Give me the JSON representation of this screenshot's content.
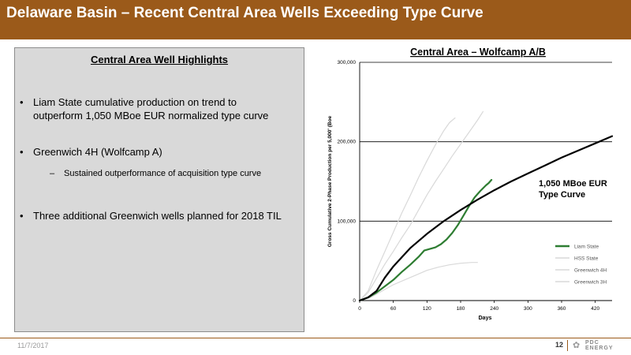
{
  "header": {
    "title": "Delaware Basin – Recent Central Area Wells Exceeding Type Curve"
  },
  "panel": {
    "heading": "Central Area Well Highlights",
    "bullets": [
      "Liam State cumulative production on trend to outperform 1,050 MBoe EUR normalized type curve",
      "Greenwich 4H (Wolfcamp A)",
      "Three additional Greenwich wells planned for 2018 TIL"
    ],
    "sub_bullet": "Sustained outperformance of acquisition type curve",
    "bullet_glyph": "•",
    "dash_glyph": "–"
  },
  "footer": {
    "date": "11/7/2017",
    "page": "12",
    "logo_line1": "PDC",
    "logo_line2": "ENERGY"
  },
  "chart_data": {
    "type": "line",
    "title": "Central Area – Wolfcamp A/B",
    "xlabel": "Days",
    "ylabel": "Gross Cumulative 2-Phase Production per 5,000' (Boe",
    "xlim": [
      0,
      450
    ],
    "ylim": [
      0,
      300000
    ],
    "x_ticks": [
      0,
      60,
      120,
      180,
      240,
      300,
      360,
      420
    ],
    "y_ticks": [
      0,
      100000,
      200000,
      300000
    ],
    "y_tick_labels": [
      "0",
      "100,000",
      "200,000",
      "300,000"
    ],
    "grid": "horizontal",
    "legend_position": "right",
    "annotation": {
      "text": [
        "1,050 MBoe EUR",
        "Type Curve"
      ],
      "x": 320,
      "y": 148000
    },
    "series": [
      {
        "name": "1,050 MBoe EUR Type Curve",
        "role": "type-curve",
        "color": "#000000",
        "width": 2.2,
        "points": [
          [
            0,
            0
          ],
          [
            15,
            4000
          ],
          [
            30,
            12000
          ],
          [
            45,
            29000
          ],
          [
            60,
            43000
          ],
          [
            90,
            66000
          ],
          [
            120,
            84000
          ],
          [
            150,
            100000
          ],
          [
            180,
            114000
          ],
          [
            210,
            127000
          ],
          [
            240,
            139000
          ],
          [
            270,
            150000
          ],
          [
            300,
            160000
          ],
          [
            330,
            170000
          ],
          [
            360,
            180000
          ],
          [
            390,
            189000
          ],
          [
            420,
            198000
          ],
          [
            450,
            207000
          ]
        ]
      },
      {
        "name": "Liam State",
        "color": "#2e7d32",
        "width": 2.2,
        "points": [
          [
            0,
            0
          ],
          [
            15,
            4000
          ],
          [
            30,
            10000
          ],
          [
            45,
            18000
          ],
          [
            60,
            26000
          ],
          [
            75,
            36000
          ],
          [
            90,
            45000
          ],
          [
            105,
            55000
          ],
          [
            115,
            63000
          ],
          [
            125,
            65000
          ],
          [
            135,
            67000
          ],
          [
            145,
            71000
          ],
          [
            155,
            77000
          ],
          [
            165,
            85000
          ],
          [
            175,
            95000
          ],
          [
            185,
            107000
          ],
          [
            195,
            119000
          ],
          [
            205,
            130000
          ],
          [
            215,
            138000
          ],
          [
            225,
            145000
          ],
          [
            230,
            148000
          ],
          [
            235,
            152000
          ]
        ]
      },
      {
        "name": "HSS State",
        "color": "#d9d9d9",
        "width": 1.2,
        "points": [
          [
            0,
            0
          ],
          [
            15,
            10000
          ],
          [
            30,
            28000
          ],
          [
            45,
            46000
          ],
          [
            60,
            62000
          ],
          [
            75,
            79000
          ],
          [
            90,
            95000
          ],
          [
            105,
            114000
          ],
          [
            120,
            133000
          ],
          [
            135,
            150000
          ],
          [
            150,
            166000
          ],
          [
            165,
            182000
          ],
          [
            180,
            197000
          ],
          [
            195,
            212000
          ],
          [
            210,
            227000
          ],
          [
            220,
            238000
          ]
        ]
      },
      {
        "name": "Greenwich 4H",
        "color": "#d9d9d9",
        "width": 1.2,
        "points": [
          [
            0,
            0
          ],
          [
            15,
            12000
          ],
          [
            30,
            38000
          ],
          [
            45,
            62000
          ],
          [
            60,
            86000
          ],
          [
            75,
            110000
          ],
          [
            90,
            132000
          ],
          [
            105,
            155000
          ],
          [
            120,
            176000
          ],
          [
            135,
            196000
          ],
          [
            150,
            214000
          ],
          [
            160,
            224000
          ],
          [
            170,
            230000
          ]
        ]
      },
      {
        "name": "Greenwich 3H",
        "color": "#d9d9d9",
        "width": 1.2,
        "points": [
          [
            0,
            0
          ],
          [
            20,
            4000
          ],
          [
            40,
            12000
          ],
          [
            60,
            20000
          ],
          [
            80,
            26000
          ],
          [
            100,
            32000
          ],
          [
            120,
            38000
          ],
          [
            140,
            42000
          ],
          [
            160,
            45000
          ],
          [
            180,
            47000
          ],
          [
            200,
            48000
          ],
          [
            210,
            48000
          ]
        ]
      }
    ]
  }
}
